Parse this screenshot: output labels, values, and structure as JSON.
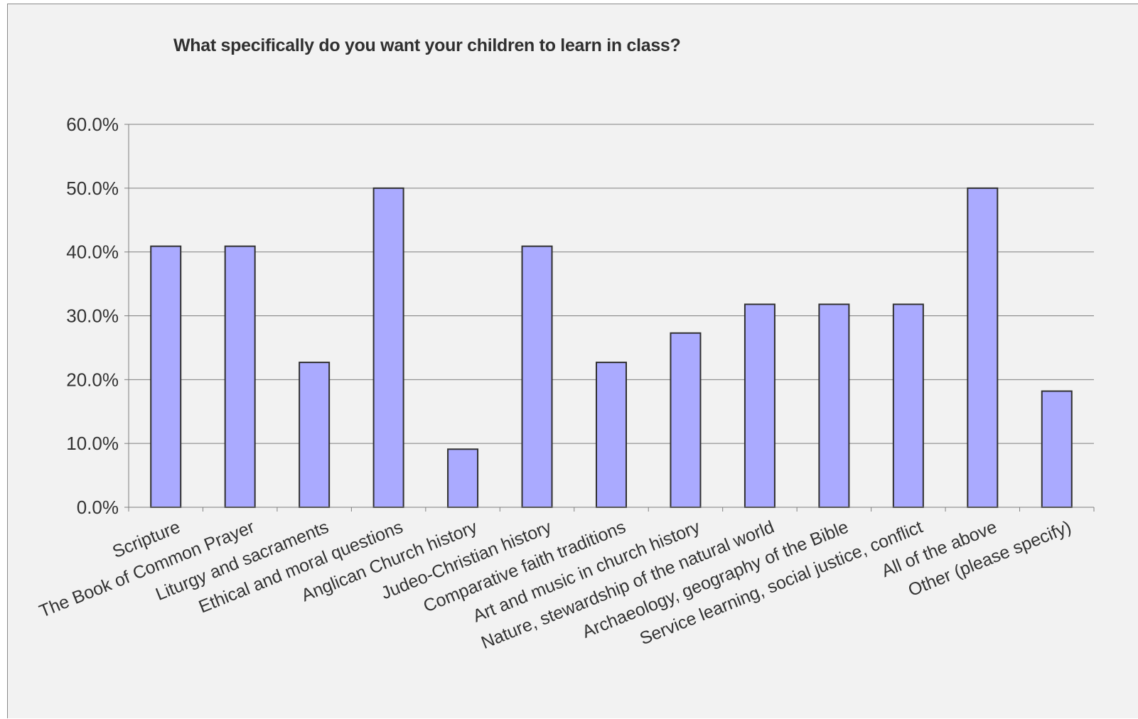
{
  "chart_data": {
    "type": "bar",
    "title": "What specifically do you want your children to learn in class?",
    "xlabel": "",
    "ylabel": "",
    "ylim": [
      0,
      60
    ],
    "y_ticks": [
      "0.0%",
      "10.0%",
      "20.0%",
      "30.0%",
      "40.0%",
      "50.0%",
      "60.0%"
    ],
    "grid": true,
    "legend": "none",
    "categories": [
      "Scripture",
      "The Book of Common Prayer",
      "Liturgy and sacraments",
      "Ethical and moral questions",
      "Anglican Church history",
      "Judeo-Christian history",
      "Comparative faith traditions",
      "Art and music in church history",
      "Nature, stewardship of the natural world",
      "Archaeology, geography of the Bible",
      "Service learning, social justice, conflict",
      "All of the above",
      "Other (please specify)"
    ],
    "values": [
      40.9,
      40.9,
      22.7,
      50.0,
      9.1,
      40.9,
      22.7,
      27.3,
      31.8,
      31.8,
      31.8,
      50.0,
      18.2
    ],
    "colors": {
      "bar_fill": "#aaaaff",
      "bar_stroke": "#303030",
      "grid": "#7f7f7f",
      "background": "#f2f2f2",
      "text": "#333333"
    }
  }
}
